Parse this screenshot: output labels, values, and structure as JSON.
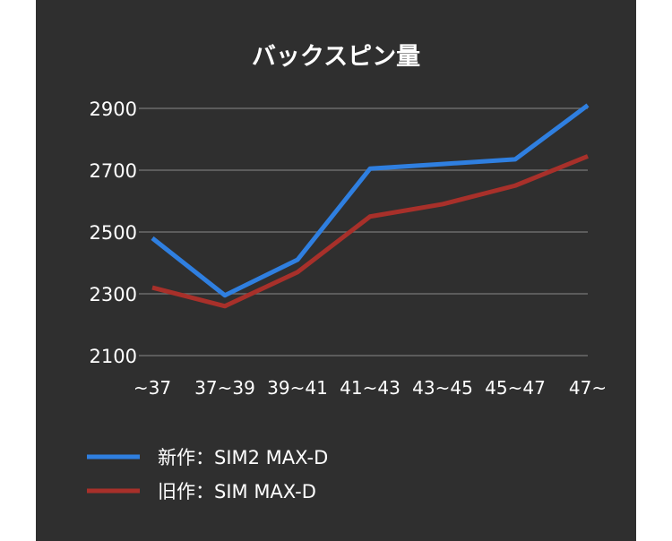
{
  "chart_data": {
    "type": "line",
    "title": "バックスピン量",
    "xlabel": "",
    "ylabel": "",
    "categories": [
      "~37",
      "37~39",
      "39~41",
      "41~43",
      "43~45",
      "45~47",
      "47~"
    ],
    "ylim": [
      2100,
      2900
    ],
    "yticks": [
      2100,
      2300,
      2500,
      2700,
      2900
    ],
    "grid": true,
    "legend_position": "bottom",
    "series": [
      {
        "name": "新作：SIM2 MAX-D",
        "color": "#2f7fe0",
        "values": [
          2480,
          2295,
          2410,
          2705,
          2720,
          2735,
          2910
        ]
      },
      {
        "name": "旧作：SIM MAX-D",
        "color": "#a8302a",
        "values": [
          2320,
          2260,
          2370,
          2550,
          2590,
          2650,
          2745
        ]
      }
    ]
  },
  "colors": {
    "panel_background": "#2f2f2f",
    "grid": "#6b6b6b",
    "text": "#ffffff"
  }
}
